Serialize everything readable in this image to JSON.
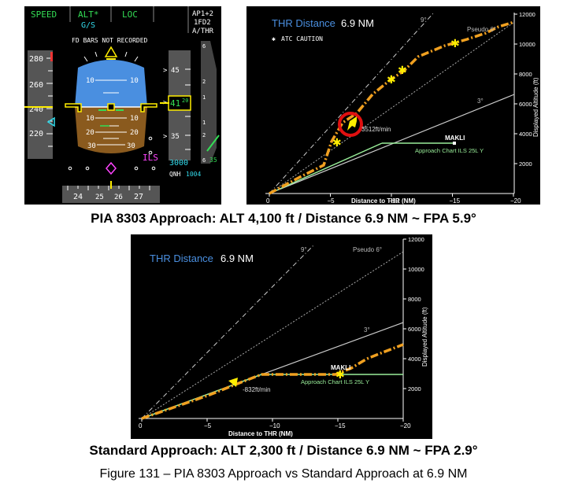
{
  "pfd": {
    "fma": {
      "speed": "SPEED",
      "alt": "ALT*",
      "gs": "G/S",
      "loc": "LOC",
      "ap1": "AP1+2",
      "ap2": "1FD2",
      "ap3": "A/THR"
    },
    "fd_message": "FD BARS NOT RECORDED",
    "speed_ticks": [
      "280",
      "260",
      "240",
      "220"
    ],
    "pitch_labels": {
      "up10": "10",
      "down10": "10",
      "down20": "20",
      "down30": "30"
    },
    "alt_ticks": [
      "45",
      "40",
      "35"
    ],
    "alt_readout": "41",
    "alt_sub": "20",
    "alt_target": "3000",
    "qnh_label": "QNH",
    "qnh_value": "1004",
    "ils": "ILS",
    "heading": [
      "24",
      "25",
      "26",
      "27"
    ],
    "vs_ticks": [
      "6",
      "2",
      "1",
      "1",
      "2",
      "6"
    ],
    "vs_value": "35"
  },
  "chart1": {
    "thr_label": "THR Distance",
    "thr_value": "6.9 NM",
    "atc": "ATC CAUTION",
    "nine": "9°",
    "pseudo": "Pseudo 6°",
    "three": "3°",
    "vs": "3512ft/min",
    "makli": "MAKLI",
    "approach": "Approach Chart ILS 25L Y",
    "xlabel": "Distance to THR (NM)",
    "ylabel": "Displayed Altitude (ft)",
    "xticks": [
      "0",
      "−5",
      "−10",
      "−15",
      "−20"
    ],
    "yticks": [
      "12000",
      "10000",
      "8000",
      "6000",
      "4000",
      "2000"
    ]
  },
  "chart2": {
    "thr_label": "THR Distance",
    "thr_value": "6.9 NM",
    "nine": "9°",
    "pseudo": "Pseudo 6°",
    "three": "3°",
    "vs": "-832ft/min",
    "makli": "MAKLI",
    "approach": "Approach Chart ILS 25L Y",
    "xlabel": "Distance to THR (NM)",
    "ylabel": "Displayed Altitude (ft)",
    "xticks": [
      "0",
      "−5",
      "−10",
      "−15",
      "−20"
    ],
    "yticks": [
      "12000",
      "10000",
      "8000",
      "6000",
      "4000",
      "2000"
    ]
  },
  "captions": {
    "cap1": "PIA 8303 Approach: ALT 4,100 ft / Distance 6.9 NM ~ FPA 5.9°",
    "cap2": "Standard Approach: ALT 2,300 ft / Distance 6.9 NM ~ FPA 2.9°",
    "figure": "Figure 131 – PIA 8303 Approach vs Standard Approach at 6.9 NM"
  },
  "colors": {
    "green": "#33dd55",
    "cyan": "#33ddee",
    "yellow": "#ffee00",
    "orange": "#f0a020",
    "sky": "#4a8fe0",
    "ground": "#8a5a1e",
    "magenta": "#ff44ff"
  }
}
